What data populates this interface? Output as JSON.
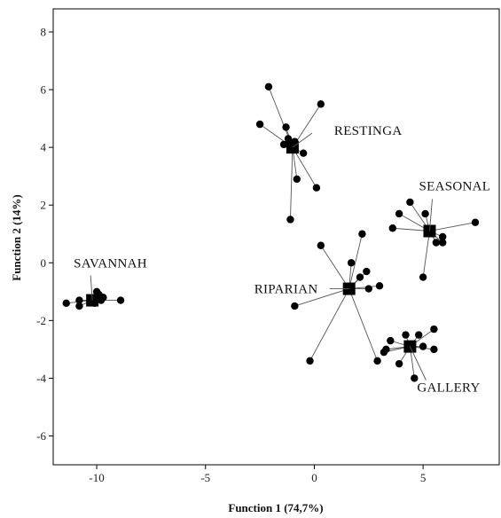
{
  "chart_data": {
    "type": "scatter",
    "title": "",
    "xlabel": "Function 1 (74,7%)",
    "ylabel": "Function 2 (14%)",
    "xlim": [
      -12,
      8.5
    ],
    "ylim": [
      -7,
      8.8
    ],
    "x_ticks": [
      -10,
      -5,
      0,
      5
    ],
    "x_tick_labels": [
      "-10",
      "-5",
      "0",
      "5"
    ],
    "y_ticks": [
      -6,
      -4,
      -2,
      0,
      2,
      4,
      6,
      8
    ],
    "y_tick_labels": [
      "-6",
      "-4",
      "-2",
      "0",
      "2",
      "4",
      "6",
      "8"
    ],
    "grid": false,
    "groups": [
      {
        "name": "RESTINGA",
        "centroid": [
          -1.0,
          4.0
        ],
        "points": [
          [
            -2.1,
            6.1
          ],
          [
            -2.5,
            4.8
          ],
          [
            -1.3,
            4.7
          ],
          [
            -1.4,
            4.1
          ],
          [
            -1.2,
            4.3
          ],
          [
            -0.9,
            4.2
          ],
          [
            0.3,
            5.5
          ],
          [
            -0.5,
            3.8
          ],
          [
            -0.8,
            2.9
          ],
          [
            0.1,
            2.6
          ],
          [
            -1.1,
            1.5
          ]
        ]
      },
      {
        "name": "SEASONAL",
        "centroid": [
          5.3,
          1.1
        ],
        "points": [
          [
            3.9,
            1.7
          ],
          [
            4.4,
            2.1
          ],
          [
            5.1,
            1.7
          ],
          [
            3.6,
            1.2
          ],
          [
            5.6,
            0.7
          ],
          [
            5.9,
            0.7
          ],
          [
            5.9,
            0.9
          ],
          [
            7.4,
            1.4
          ],
          [
            5.0,
            -0.5
          ]
        ]
      },
      {
        "name": "SAVANNAH",
        "centroid": [
          -10.2,
          -1.3
        ],
        "points": [
          [
            -11.4,
            -1.4
          ],
          [
            -10.8,
            -1.3
          ],
          [
            -10.8,
            -1.5
          ],
          [
            -10.0,
            -1.0
          ],
          [
            -9.9,
            -1.1
          ],
          [
            -9.7,
            -1.2
          ],
          [
            -10.1,
            -1.4
          ],
          [
            -9.8,
            -1.3
          ],
          [
            -8.9,
            -1.3
          ]
        ]
      },
      {
        "name": "RIPARIAN",
        "centroid": [
          1.6,
          -0.9
        ],
        "points": [
          [
            0.3,
            0.6
          ],
          [
            2.2,
            1.0
          ],
          [
            1.7,
            0.0
          ],
          [
            2.4,
            -0.3
          ],
          [
            2.1,
            -0.5
          ],
          [
            3.0,
            -0.8
          ],
          [
            2.5,
            -0.9
          ],
          [
            -0.9,
            -1.5
          ],
          [
            -0.2,
            -3.4
          ],
          [
            2.9,
            -3.4
          ]
        ]
      },
      {
        "name": "GALLERY",
        "centroid": [
          4.4,
          -2.9
        ],
        "points": [
          [
            3.5,
            -2.7
          ],
          [
            4.2,
            -2.5
          ],
          [
            4.8,
            -2.5
          ],
          [
            5.5,
            -2.3
          ],
          [
            3.3,
            -3.0
          ],
          [
            3.2,
            -3.1
          ],
          [
            3.9,
            -3.5
          ],
          [
            5.0,
            -2.9
          ],
          [
            5.5,
            -3.0
          ],
          [
            4.6,
            -4.0
          ]
        ]
      }
    ]
  }
}
